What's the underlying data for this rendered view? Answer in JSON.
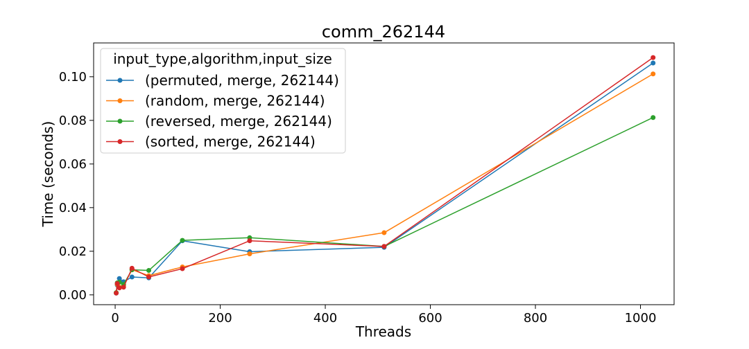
{
  "chart_data": {
    "type": "line",
    "title": "comm_262144",
    "xlabel": "Threads",
    "ylabel": "Time (seconds)",
    "xlim": [
      -41,
      1064
    ],
    "ylim": [
      -0.0045,
      0.1155
    ],
    "xticks": [
      0,
      200,
      400,
      600,
      800,
      1000
    ],
    "yticks": [
      0.0,
      0.02,
      0.04,
      0.06,
      0.08,
      0.1
    ],
    "xtick_labels": [
      "0",
      "200",
      "400",
      "600",
      "800",
      "1000"
    ],
    "ytick_labels": [
      "0.00",
      "0.02",
      "0.04",
      "0.06",
      "0.08",
      "0.10"
    ],
    "grid": false,
    "legend_title": "input_type,algorithm,input_size",
    "legend_position": "upper-left",
    "x": [
      2,
      4,
      8,
      16,
      32,
      64,
      128,
      256,
      512,
      1024
    ],
    "series": [
      {
        "name": "(permuted, merge, 262144)",
        "color": "#1f77b4",
        "values": [
          0.0008,
          0.0045,
          0.0075,
          0.006,
          0.0082,
          0.0078,
          0.0248,
          0.0198,
          0.0218,
          0.1063
        ]
      },
      {
        "name": "(random, merge, 262144)",
        "color": "#ff7f0e",
        "values": [
          0.001,
          0.0048,
          0.0035,
          0.0042,
          0.0115,
          0.0088,
          0.0128,
          0.0188,
          0.0285,
          0.1013
        ]
      },
      {
        "name": "(reversed, merge, 262144)",
        "color": "#2ca02c",
        "values": [
          0.001,
          0.0055,
          0.0058,
          0.0048,
          0.0115,
          0.0112,
          0.025,
          0.0262,
          0.0222,
          0.0813
        ]
      },
      {
        "name": "(sorted, merge, 262144)",
        "color": "#d62728",
        "values": [
          0.0008,
          0.0052,
          0.0032,
          0.0035,
          0.0122,
          0.0082,
          0.012,
          0.0248,
          0.0222,
          0.1088
        ]
      }
    ]
  }
}
